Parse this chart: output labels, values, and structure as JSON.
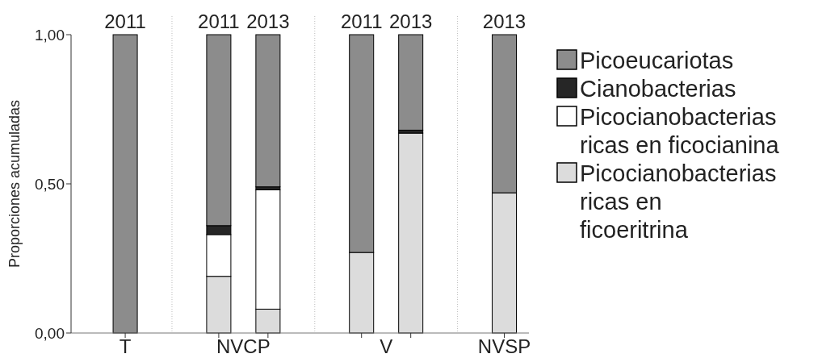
{
  "chart_data": {
    "type": "bar",
    "stacked": true,
    "ylabel": "Proporciones acumuladas",
    "categories": [
      "2011",
      "2011",
      "2013",
      "2011",
      "2013",
      "2013"
    ],
    "annotations": [
      "T",
      "NVCP",
      "V",
      "NVSP"
    ],
    "series": [
      {
        "name": "Picocianobacterias ricas en ficoeritrina",
        "color": "#dcdcdc",
        "values": [
          0,
          0.19,
          0.08,
          0.27,
          0.67,
          0.47
        ]
      },
      {
        "name": "Picocianobacterias ricas en ficocianina",
        "color": "#ffffff",
        "values": [
          0,
          0.14,
          0.4,
          0,
          0,
          0
        ]
      },
      {
        "name": "Cianobacterias",
        "color": "#262626",
        "values": [
          0,
          0.03,
          0.01,
          0,
          0.01,
          0
        ]
      },
      {
        "name": "Picoeucariotas",
        "color": "#8c8c8c",
        "values": [
          1.0,
          0.64,
          0.51,
          0.73,
          0.32,
          0.53
        ]
      }
    ],
    "ylim": [
      0,
      1
    ],
    "yticks": [
      {
        "value": 0,
        "label": "0,00"
      },
      {
        "value": 0.5,
        "label": "0,50"
      },
      {
        "value": 1,
        "label": "1,00"
      }
    ],
    "grid": false,
    "legend": "right"
  }
}
